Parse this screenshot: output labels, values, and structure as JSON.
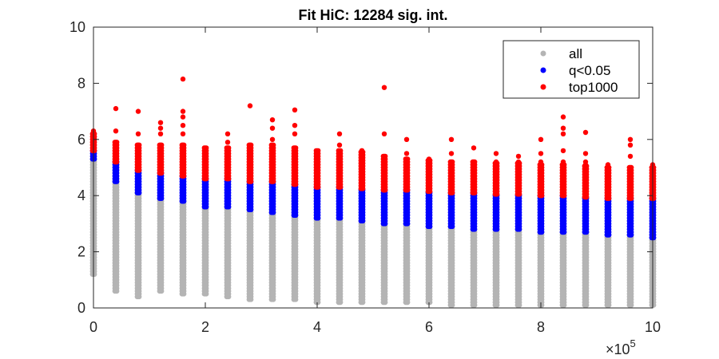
{
  "chart_data": {
    "type": "scatter",
    "title": "Fit HiC: 12284 sig. int.",
    "xlabel": "",
    "ylabel": "",
    "xlim": [
      0,
      1000000
    ],
    "ylim": [
      0,
      10
    ],
    "x_ticks": [
      0,
      200000,
      400000,
      600000,
      800000,
      1000000
    ],
    "x_tick_labels": [
      "0",
      "2",
      "4",
      "6",
      "8",
      "10"
    ],
    "x_exponent_label": "×10",
    "x_exponent_power": "5",
    "y_ticks": [
      0,
      2,
      4,
      6,
      8,
      10
    ],
    "y_tick_labels": [
      "0",
      "2",
      "4",
      "6",
      "8",
      "10"
    ],
    "grid": false,
    "legend_position": "top-right",
    "x_positions": [
      0,
      40000,
      80000,
      120000,
      160000,
      200000,
      240000,
      280000,
      320000,
      360000,
      400000,
      440000,
      480000,
      520000,
      560000,
      600000,
      640000,
      680000,
      720000,
      760000,
      800000,
      840000,
      880000,
      920000,
      960000,
      1000000
    ],
    "series": [
      {
        "name": "all",
        "color": "#b4b4b4",
        "y_min": [
          1.2,
          0.6,
          0.4,
          0.6,
          0.5,
          0.5,
          0.4,
          0.3,
          0.3,
          0.3,
          0.2,
          0.2,
          0.2,
          0.2,
          0.2,
          0.2,
          0.1,
          0.1,
          0.1,
          0.1,
          0.1,
          0.1,
          0.1,
          0.1,
          0.1,
          0.1
        ],
        "y_max": [
          5.3,
          4.5,
          4.1,
          3.9,
          3.8,
          3.6,
          3.6,
          3.5,
          3.4,
          3.3,
          3.2,
          3.2,
          3.1,
          3.0,
          3.0,
          2.9,
          2.9,
          2.8,
          2.8,
          2.8,
          2.7,
          2.7,
          2.7,
          2.6,
          2.6,
          2.5
        ]
      },
      {
        "name": "q<0.05",
        "color": "#0000ff",
        "y_min": [
          5.3,
          4.5,
          4.1,
          3.9,
          3.8,
          3.6,
          3.6,
          3.5,
          3.4,
          3.3,
          3.2,
          3.2,
          3.1,
          3.0,
          3.0,
          2.9,
          2.9,
          2.8,
          2.8,
          2.8,
          2.7,
          2.7,
          2.7,
          2.6,
          2.6,
          2.5
        ],
        "y_max": [
          5.6,
          5.2,
          4.9,
          4.8,
          4.7,
          4.6,
          4.6,
          4.5,
          4.5,
          4.4,
          4.3,
          4.3,
          4.25,
          4.2,
          4.2,
          4.15,
          4.1,
          4.1,
          4.05,
          4.05,
          4.0,
          4.0,
          3.95,
          3.9,
          3.9,
          3.9
        ]
      },
      {
        "name": "top1000",
        "color": "#ff0000",
        "y_min": [
          5.6,
          5.2,
          4.9,
          4.8,
          4.7,
          4.6,
          4.6,
          4.5,
          4.5,
          4.4,
          4.3,
          4.3,
          4.25,
          4.2,
          4.2,
          4.15,
          4.1,
          4.1,
          4.05,
          4.05,
          4.0,
          4.0,
          3.95,
          3.9,
          3.9,
          3.9
        ],
        "y_max": [
          6.2,
          5.9,
          5.8,
          5.8,
          5.8,
          5.7,
          5.7,
          5.8,
          5.8,
          5.7,
          5.6,
          5.6,
          5.6,
          5.4,
          5.3,
          5.3,
          5.2,
          5.2,
          5.2,
          5.2,
          5.1,
          5.1,
          5.1,
          5.0,
          5.0,
          5.0
        ],
        "outliers": [
          [
            0,
            6.3
          ],
          [
            40000,
            6.3
          ],
          [
            40000,
            7.1
          ],
          [
            80000,
            6.2
          ],
          [
            80000,
            7.0
          ],
          [
            120000,
            6.2
          ],
          [
            120000,
            6.4
          ],
          [
            120000,
            6.6
          ],
          [
            160000,
            6.2
          ],
          [
            160000,
            6.5
          ],
          [
            160000,
            6.8
          ],
          [
            160000,
            7.0
          ],
          [
            160000,
            8.15
          ],
          [
            240000,
            5.9
          ],
          [
            240000,
            6.2
          ],
          [
            280000,
            7.2
          ],
          [
            320000,
            6.0
          ],
          [
            320000,
            6.4
          ],
          [
            320000,
            6.7
          ],
          [
            360000,
            6.2
          ],
          [
            360000,
            6.5
          ],
          [
            360000,
            7.05
          ],
          [
            440000,
            5.8
          ],
          [
            440000,
            6.2
          ],
          [
            480000,
            5.0
          ],
          [
            480000,
            5.6
          ],
          [
            520000,
            5.0
          ],
          [
            520000,
            6.2
          ],
          [
            520000,
            7.85
          ],
          [
            560000,
            5.5
          ],
          [
            560000,
            6.0
          ],
          [
            600000,
            5.0
          ],
          [
            600000,
            5.2
          ],
          [
            640000,
            5.5
          ],
          [
            640000,
            6.0
          ],
          [
            680000,
            5.7
          ],
          [
            720000,
            5.5
          ],
          [
            760000,
            5.4
          ],
          [
            800000,
            5.2
          ],
          [
            800000,
            5.5
          ],
          [
            800000,
            6.0
          ],
          [
            840000,
            5.2
          ],
          [
            840000,
            5.6
          ],
          [
            840000,
            6.2
          ],
          [
            840000,
            6.4
          ],
          [
            840000,
            6.8
          ],
          [
            880000,
            5.2
          ],
          [
            880000,
            5.5
          ],
          [
            880000,
            6.25
          ],
          [
            920000,
            5.1
          ],
          [
            960000,
            5.4
          ],
          [
            960000,
            5.8
          ],
          [
            960000,
            6.0
          ],
          [
            1000000,
            5.1
          ]
        ]
      }
    ]
  }
}
